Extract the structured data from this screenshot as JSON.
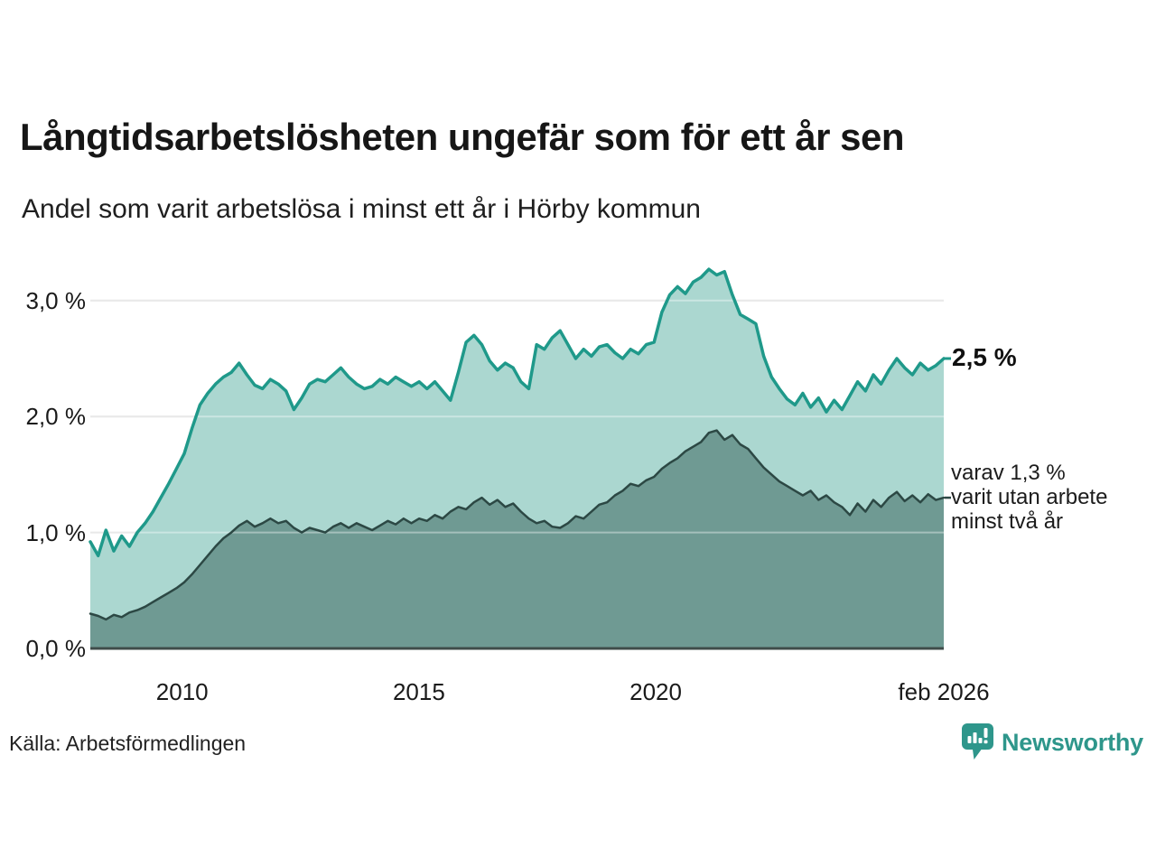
{
  "header": {
    "title": "Långtidsarbetslösheten ungefär som för ett år sen",
    "subtitle": "Andel som varit arbetslösa i minst ett år i Hörby kommun"
  },
  "chart_data": {
    "type": "area",
    "title": "Långtidsarbetslösheten ungefär som för ett år sen",
    "subtitle": "Andel som varit arbetslösa i minst ett år i Hörby kommun",
    "unit": "%",
    "x_start": 2008.06,
    "x_end": 2026.083,
    "ylim": [
      0,
      3.45
    ],
    "grid": true,
    "legend_position": "none",
    "y_ticks": [
      {
        "label": "3,0 %",
        "value": 3.0
      },
      {
        "label": "2,0 %",
        "value": 2.0
      },
      {
        "label": "1,0 %",
        "value": 1.0
      },
      {
        "label": "0,0 %",
        "value": 0.0
      }
    ],
    "x_ticks": [
      {
        "label": "2010",
        "year": 2010
      },
      {
        "label": "2015",
        "year": 2015
      },
      {
        "label": "2020",
        "year": 2020
      },
      {
        "label": "feb 2026",
        "year": 2026.083
      }
    ],
    "series": [
      {
        "name": "Arbetslösa minst ett år",
        "latest_label": "2,5 %",
        "latest_value": 2.5,
        "line_color": "#1f998a",
        "fill_color": "#abd7d0",
        "line_width": 3.5,
        "values": [
          0.92,
          0.8,
          1.02,
          0.84,
          0.97,
          0.88,
          1.0,
          1.08,
          1.18,
          1.3,
          1.42,
          1.55,
          1.68,
          1.9,
          2.1,
          2.2,
          2.28,
          2.34,
          2.38,
          2.46,
          2.36,
          2.27,
          2.24,
          2.32,
          2.28,
          2.22,
          2.06,
          2.16,
          2.28,
          2.32,
          2.3,
          2.36,
          2.42,
          2.34,
          2.28,
          2.24,
          2.26,
          2.32,
          2.28,
          2.34,
          2.3,
          2.26,
          2.3,
          2.24,
          2.3,
          2.22,
          2.14,
          2.38,
          2.64,
          2.7,
          2.62,
          2.48,
          2.4,
          2.46,
          2.42,
          2.3,
          2.24,
          2.62,
          2.58,
          2.68,
          2.74,
          2.62,
          2.5,
          2.58,
          2.52,
          2.6,
          2.62,
          2.55,
          2.5,
          2.58,
          2.54,
          2.62,
          2.64,
          2.9,
          3.05,
          3.12,
          3.06,
          3.16,
          3.2,
          3.27,
          3.22,
          3.25,
          3.05,
          2.88,
          2.84,
          2.8,
          2.52,
          2.34,
          2.24,
          2.15,
          2.1,
          2.2,
          2.08,
          2.16,
          2.04,
          2.14,
          2.06,
          2.18,
          2.3,
          2.22,
          2.36,
          2.28,
          2.4,
          2.5,
          2.42,
          2.36,
          2.46,
          2.4,
          2.44,
          2.5
        ]
      },
      {
        "name": "Varav utan arbete minst två år",
        "latest_label": "varav 1,3 % varit utan arbete minst två år",
        "latest_value": 1.3,
        "line_color": "#2c4844",
        "fill_color": "#6f9a93",
        "line_width": 2.5,
        "values": [
          0.3,
          0.28,
          0.25,
          0.29,
          0.27,
          0.31,
          0.33,
          0.36,
          0.4,
          0.44,
          0.48,
          0.52,
          0.57,
          0.64,
          0.72,
          0.8,
          0.88,
          0.95,
          1.0,
          1.06,
          1.1,
          1.05,
          1.08,
          1.12,
          1.08,
          1.1,
          1.04,
          1.0,
          1.04,
          1.02,
          1.0,
          1.05,
          1.08,
          1.04,
          1.08,
          1.05,
          1.02,
          1.06,
          1.1,
          1.07,
          1.12,
          1.08,
          1.12,
          1.1,
          1.15,
          1.12,
          1.18,
          1.22,
          1.2,
          1.26,
          1.3,
          1.24,
          1.28,
          1.22,
          1.25,
          1.18,
          1.12,
          1.08,
          1.1,
          1.05,
          1.04,
          1.08,
          1.14,
          1.12,
          1.18,
          1.24,
          1.26,
          1.32,
          1.36,
          1.42,
          1.4,
          1.45,
          1.48,
          1.55,
          1.6,
          1.64,
          1.7,
          1.74,
          1.78,
          1.86,
          1.88,
          1.8,
          1.84,
          1.76,
          1.72,
          1.64,
          1.56,
          1.5,
          1.44,
          1.4,
          1.36,
          1.32,
          1.36,
          1.28,
          1.32,
          1.26,
          1.22,
          1.15,
          1.25,
          1.18,
          1.28,
          1.22,
          1.3,
          1.35,
          1.27,
          1.32,
          1.26,
          1.33,
          1.28,
          1.3
        ]
      }
    ]
  },
  "annotations": {
    "total_label": "2,5 %",
    "two_year": {
      "lines": [
        "varav 1,3 %",
        "varit utan arbete",
        "minst två år"
      ]
    }
  },
  "footer": {
    "source": "Källa: Arbetsförmedlingen",
    "brand": "Newsworthy"
  },
  "colors": {
    "accent_teal": "#1f998a",
    "light_fill": "#abd7d0",
    "dark_line": "#2c4844",
    "dark_fill": "#6f9a93",
    "gridline": "#dcdcdc",
    "axis_line": "#3f4c4a",
    "text": "#1a1a1a",
    "brand_teal": "#2e968b"
  }
}
